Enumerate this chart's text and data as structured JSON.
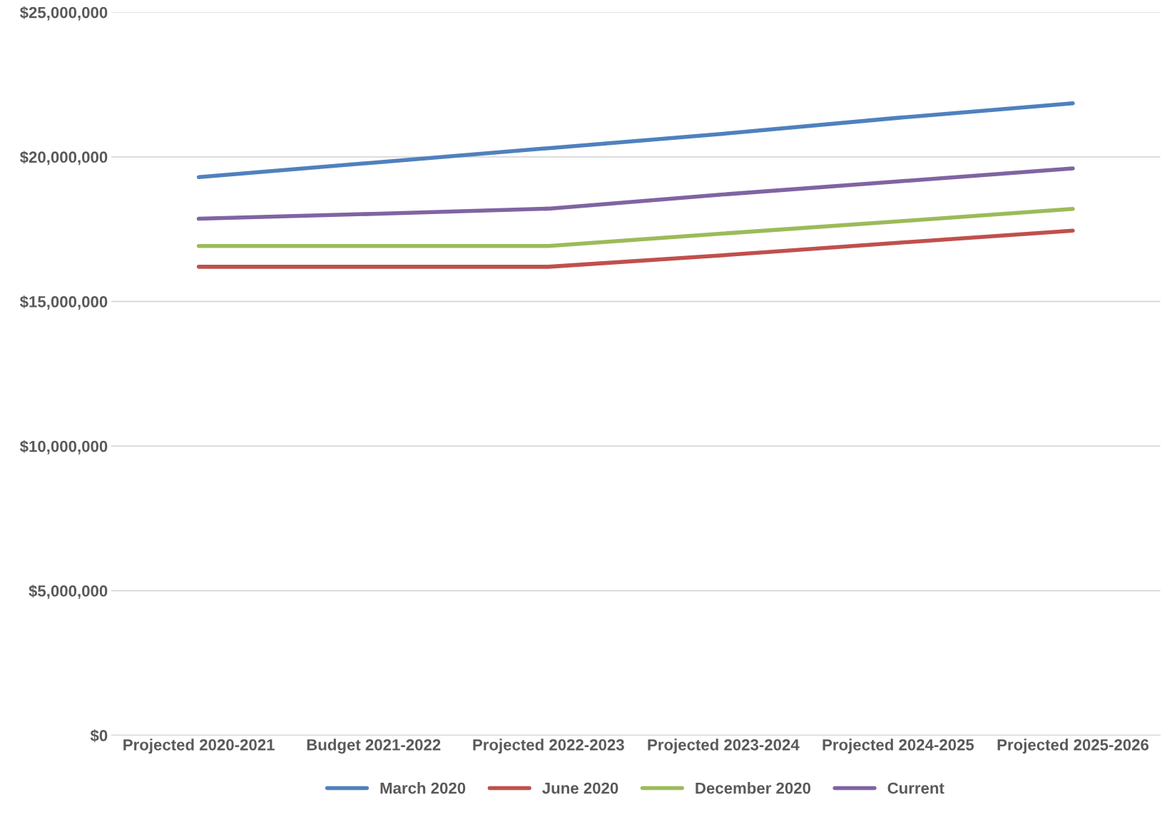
{
  "chart_data": {
    "type": "line",
    "categories": [
      "Projected 2020-2021",
      "Budget 2021-2022",
      "Projected 2022-2023",
      "Projected 2023-2024",
      "Projected 2024-2025",
      "Projected 2025-2026"
    ],
    "series": [
      {
        "name": "March 2020",
        "color": "#4f81bd",
        "values": [
          19300000,
          19800000,
          20300000,
          20800000,
          21350000,
          21850000
        ]
      },
      {
        "name": "June 2020",
        "color": "#c0504d",
        "values": [
          16200000,
          16200000,
          16200000,
          16600000,
          17030000,
          17450000
        ]
      },
      {
        "name": "December 2020",
        "color": "#9bbb59",
        "values": [
          16920000,
          16920000,
          16920000,
          17350000,
          17770000,
          18200000
        ]
      },
      {
        "name": "Current",
        "color": "#8064a2",
        "values": [
          17860000,
          18030000,
          18210000,
          18700000,
          19150000,
          19600000
        ]
      }
    ],
    "ylim": [
      0,
      25000000
    ],
    "yticks": [
      {
        "value": 0,
        "label": "$0"
      },
      {
        "value": 5000000,
        "label": "$5,000,000"
      },
      {
        "value": 10000000,
        "label": "$10,000,000"
      },
      {
        "value": 15000000,
        "label": "$15,000,000"
      },
      {
        "value": 20000000,
        "label": "$20,000,000"
      },
      {
        "value": 25000000,
        "label": "$25,000,000"
      }
    ],
    "grid": "y",
    "legend": "bottom",
    "marker": "none",
    "line_style": "solid"
  }
}
